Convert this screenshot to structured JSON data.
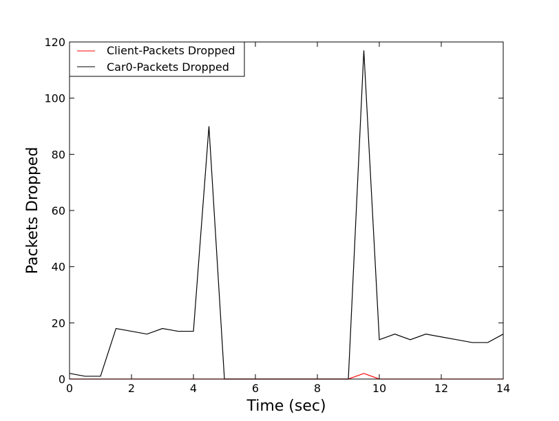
{
  "chart_data": {
    "type": "line",
    "title": "",
    "xlabel": "Time (sec)",
    "ylabel": "Packets Dropped",
    "xlim": [
      0,
      14
    ],
    "ylim": [
      0,
      120
    ],
    "xticks": [
      0,
      2,
      4,
      6,
      8,
      10,
      12,
      14
    ],
    "yticks": [
      0,
      20,
      40,
      60,
      80,
      100,
      120
    ],
    "grid": false,
    "legend_position": "top-left",
    "series": [
      {
        "name": "Client-Packets Dropped",
        "color": "#ff0000",
        "x": [
          0,
          0.5,
          1,
          1.5,
          2,
          2.5,
          3,
          3.5,
          4,
          4.5,
          5,
          5.5,
          6,
          6.5,
          7,
          7.5,
          8,
          8.5,
          9,
          9.5,
          10,
          10.5,
          11,
          11.5,
          12,
          12.5,
          13,
          13.5,
          14
        ],
        "y": [
          0,
          0,
          0,
          0,
          0,
          0,
          0,
          0,
          0,
          0,
          0,
          0,
          0,
          0,
          0,
          0,
          0,
          0,
          0,
          2,
          0,
          0,
          0,
          0,
          0,
          0,
          0,
          0,
          0
        ]
      },
      {
        "name": "Car0-Packets Dropped",
        "color": "#000000",
        "x": [
          0,
          0.5,
          1,
          1.5,
          2,
          2.5,
          3,
          3.5,
          4,
          4.5,
          5,
          5.5,
          6,
          6.5,
          7,
          7.5,
          8,
          8.5,
          9,
          9.5,
          10,
          10.5,
          11,
          11.5,
          12,
          12.5,
          13,
          13.5,
          14
        ],
        "y": [
          2,
          1,
          1,
          18,
          17,
          16,
          18,
          17,
          17,
          90,
          0,
          0,
          0,
          0,
          0,
          0,
          0,
          0,
          0,
          117,
          14,
          16,
          14,
          16,
          15,
          14,
          13,
          13,
          16
        ]
      }
    ]
  }
}
